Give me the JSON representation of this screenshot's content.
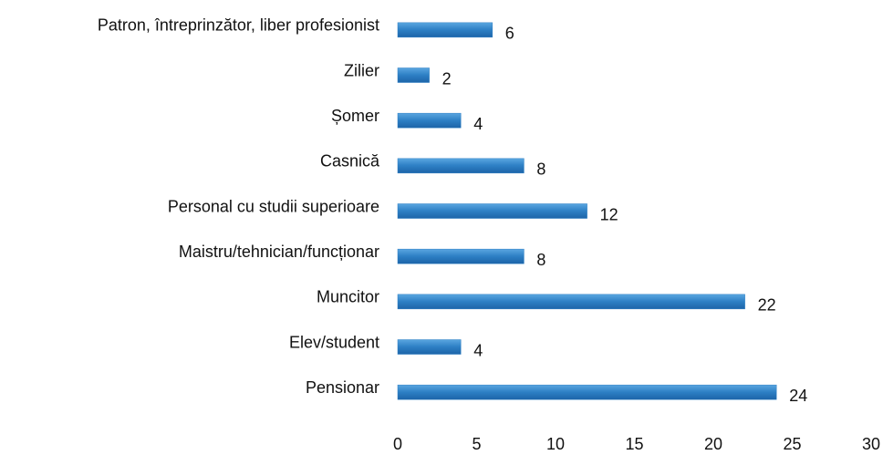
{
  "chart_data": {
    "type": "bar",
    "orientation": "horizontal",
    "categories": [
      "Patron, întreprinzător, liber profesionist",
      "Zilier",
      "Șomer",
      "Casnică",
      "Personal cu studii superioare",
      "Maistru/tehnician/funcționar",
      "Muncitor",
      "Elev/student",
      "Pensionar"
    ],
    "values": [
      6,
      2,
      4,
      8,
      12,
      8,
      22,
      4,
      24
    ],
    "color": "#2d7fc4",
    "xlim": [
      0,
      30
    ],
    "xticks": [
      0,
      5,
      10,
      15,
      20,
      25,
      30
    ],
    "grid": false
  }
}
